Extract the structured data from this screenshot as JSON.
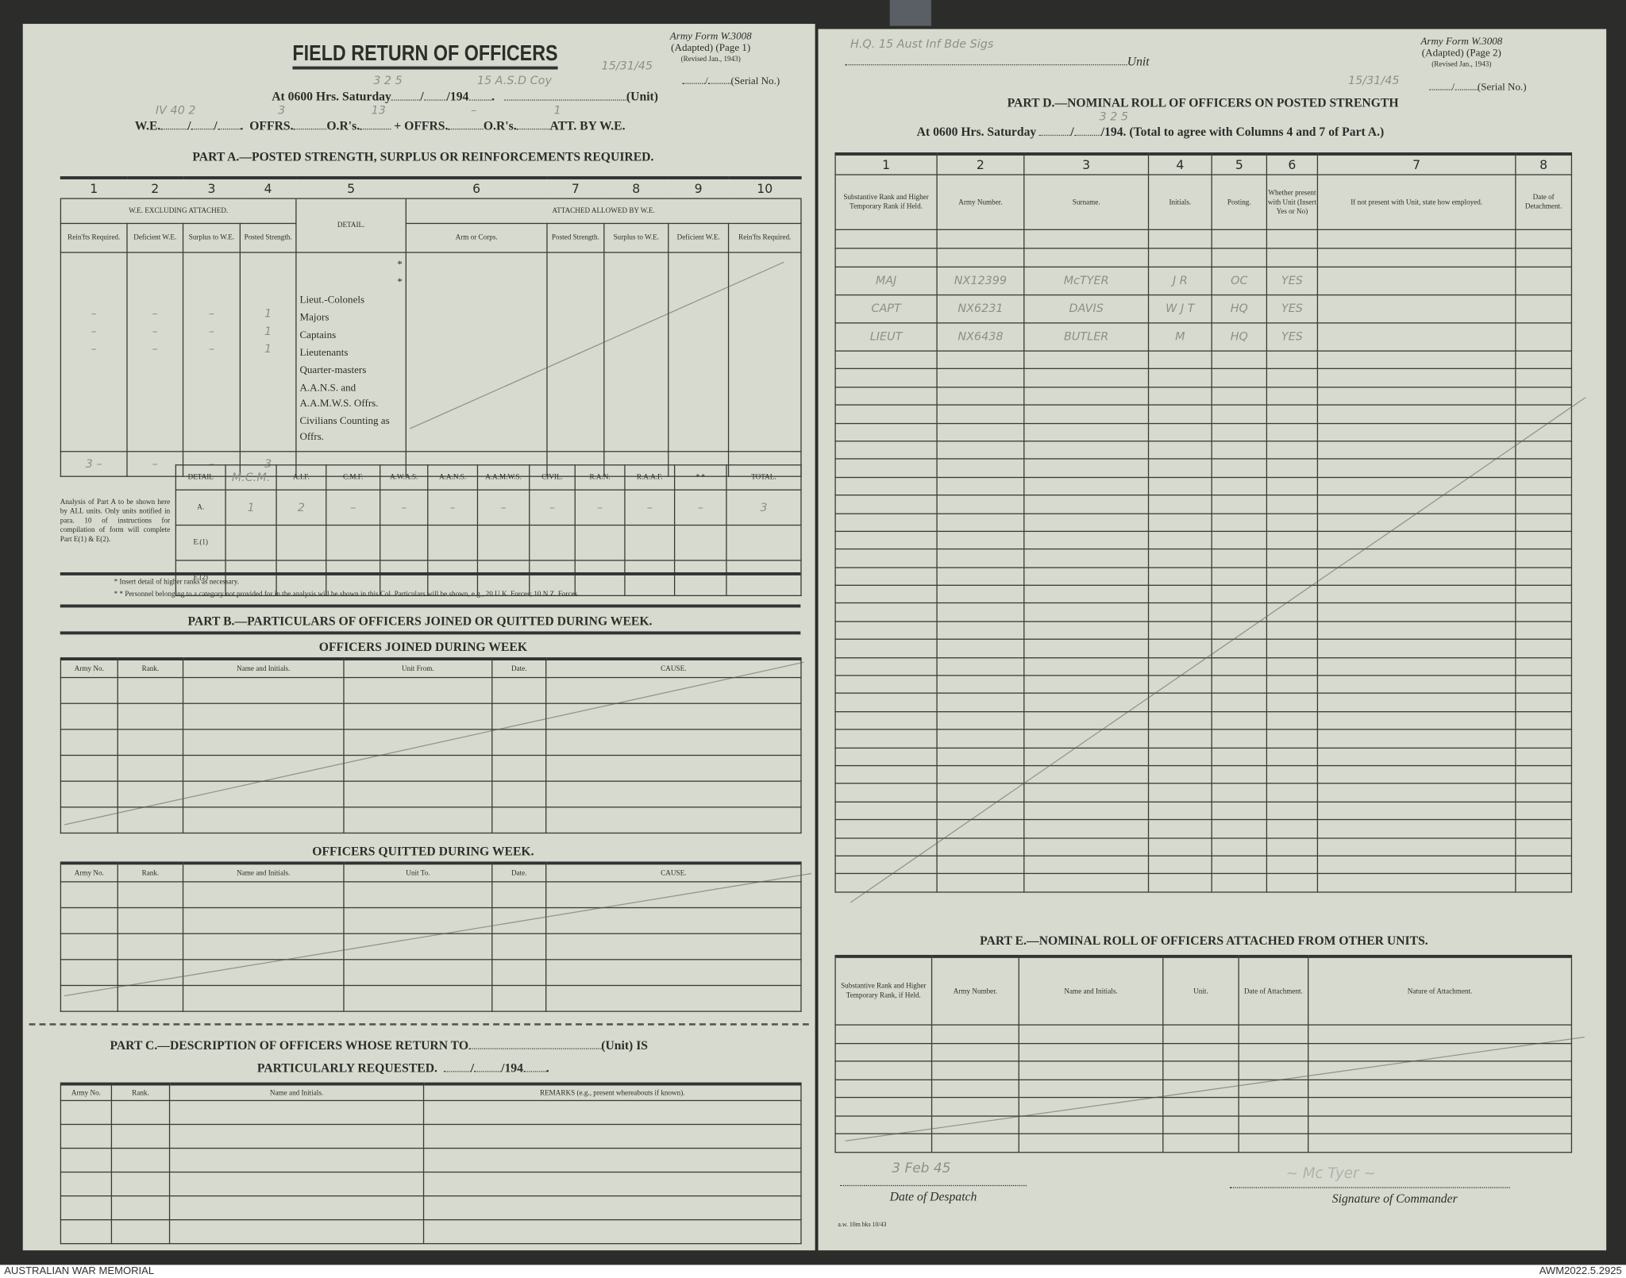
{
  "left_page": {
    "title": "FIELD RETURN OF OFFICERS",
    "form_id": {
      "line1": "Army Form W.3008",
      "line2": "(Adapted) (Page 1)",
      "line3": "(Revised Jan., 1943)",
      "serial_label": "(Serial No.)",
      "serial_hand": "15/31/45"
    },
    "at_line": {
      "prefix": "At 0600 Hrs. Saturday",
      "year": "/194",
      "unit_label": "(Unit)",
      "date_hand": "3   2   5",
      "unit_hand": "15 A.S.D Coy"
    },
    "we_line": {
      "we": "W.E.",
      "offrs1": "OFFRS.",
      "ors1": "O.R's.",
      "plus": "+",
      "offrs2": "OFFRS.",
      "ors2": "O.R's.",
      "att": "ATT. BY W.E.",
      "we_hand": "IV  40  2",
      "offrs1_hand": "3",
      "ors1_hand": "13",
      "offrs2_hand": "–",
      "ors2_hand": "1"
    },
    "part_a": {
      "heading": "PART A.—POSTED STRENGTH, SURPLUS OR REINFORCEMENTS REQUIRED.",
      "col_numbers": [
        "1",
        "2",
        "3",
        "4",
        "5",
        "6",
        "7",
        "8",
        "9",
        "10"
      ],
      "group_we": "W.E. EXCLUDING ATTACHED.",
      "detail": "DETAIL.",
      "group_att": "ATTACHED ALLOWED BY W.E.",
      "sub_headers": [
        "Rein'fts Required.",
        "Deficient W.E.",
        "Surplus to W.E.",
        "Posted Strength.",
        "Arm or Corps.",
        "Posted Strength.",
        "Surplus to W.E.",
        "Deficient W.E.",
        "Rein'fts Required."
      ],
      "ranks": [
        "*",
        "*",
        "Lieut.-Colonels",
        "Majors",
        "Captains",
        "Lieutenants",
        "Quarter-masters",
        "A.A.N.S. and A.A.M.W.S. Offrs.",
        "Civilians Counting as Offrs."
      ],
      "hand_entries": {
        "col1": [
          "–",
          "–",
          "–"
        ],
        "col2": [
          "–",
          "–",
          "–"
        ],
        "col3": [
          "–",
          "–",
          "–"
        ],
        "col4": [
          "1",
          "1",
          "1"
        ]
      },
      "totals_hand": [
        "3  –",
        "–",
        "–",
        "3"
      ]
    },
    "analysis": {
      "note": "Analysis of Part A to be shown here by ALL units. Only units notified in para. 10 of instructions for compilation of form will complete Part E(1) & E(2).",
      "headers": [
        "DETAIL",
        "M.C.M.",
        "A.I.F.",
        "C.M.F.",
        "A.W.A.S.",
        "A.A.N.S.",
        "A.A.M.W.S.",
        "CIVIL.",
        "R.A.N.",
        "R.A.A.F.",
        "* *",
        "TOTAL."
      ],
      "rows": [
        {
          "label": "A.",
          "values": [
            "1",
            "2",
            "–",
            "–",
            "–",
            "–",
            "–",
            "–",
            "–",
            "–",
            "3"
          ]
        },
        {
          "label": "E.(1)",
          "values": [
            "",
            "",
            "",
            "",
            "",
            "",
            "",
            "",
            "",
            "",
            ""
          ]
        },
        {
          "label": "E.(2)",
          "values": [
            "",
            "",
            "",
            "",
            "",
            "",
            "",
            "",
            "",
            "",
            ""
          ]
        }
      ],
      "footnote1": "* Insert detail of higher ranks as necessary.",
      "footnote2": "* * Personnel belonging to a category not provided for in the analysis will be shown in this Col.  Particulars will be shown, e.g., 20 U.K. Forces; 10 N.Z. Forces."
    },
    "part_b": {
      "heading": "PART B.—PARTICULARS OF OFFICERS JOINED OR QUITTED DURING WEEK.",
      "joined_title": "OFFICERS JOINED DURING WEEK",
      "joined_headers": [
        "Army No.",
        "Rank.",
        "Name and Initials.",
        "Unit From.",
        "Date.",
        "CAUSE."
      ],
      "quitted_title": "OFFICERS QUITTED DURING WEEK.",
      "quitted_headers": [
        "Army No.",
        "Rank.",
        "Name and Initials.",
        "Unit To.",
        "Date.",
        "CAUSE."
      ]
    },
    "part_c": {
      "heading1": "PART C.—DESCRIPTION OF OFFICERS WHOSE RETURN TO",
      "unit_is": "(Unit) IS",
      "heading2": "PARTICULARLY REQUESTED.",
      "year": "/194",
      "headers": [
        "Army No.",
        "Rank.",
        "Name and Initials.",
        "REMARKS (e.g., present whereabouts if known)."
      ]
    }
  },
  "right_page": {
    "unit_label": "Unit",
    "unit_hand": "H.Q. 15 Aust Inf Bde Sigs",
    "form_id": {
      "line1": "Army Form W.3008",
      "line2": "(Adapted) (Page 2)",
      "line3": "(Revised Jan., 1943)",
      "serial_label": "(Serial No.)",
      "serial_hand": "15/31/45"
    },
    "part_d": {
      "heading": "PART D.—NOMINAL ROLL OF OFFICERS ON POSTED STRENGTH",
      "at_prefix": "At 0600 Hrs. Saturday",
      "at_suffix": "/194.  (Total to agree with Columns 4 and 7 of Part A.)",
      "date_hand": "3   2   5",
      "col_numbers": [
        "1",
        "2",
        "3",
        "4",
        "5",
        "6",
        "7",
        "8"
      ],
      "headers": [
        "Substantive Rank and Higher Temporary Rank if Held.",
        "Army Number.",
        "Surname.",
        "Initials.",
        "Posting.",
        "Whether present with Unit (Insert Yes or No)",
        "If not present with Unit, state how employed.",
        "Date of Detachment."
      ],
      "entries": [
        [
          "MAJ",
          "NX12399",
          "McTYER",
          "J R",
          "OC",
          "YES",
          "",
          ""
        ],
        [
          "CAPT",
          "NX6231",
          "DAVIS",
          "W J T",
          "HQ",
          "YES",
          "",
          ""
        ],
        [
          "LIEUT",
          "NX6438",
          "BUTLER",
          "M",
          "HQ",
          "YES",
          "",
          ""
        ]
      ]
    },
    "part_e": {
      "heading": "PART E.—NOMINAL ROLL OF OFFICERS ATTACHED FROM OTHER UNITS.",
      "headers": [
        "Substantive Rank and Higher Temporary Rank, if Held.",
        "Army Number.",
        "Name and Initials.",
        "Unit.",
        "Date of Attachment.",
        "Nature of Attachment."
      ]
    },
    "date_of_despatch_label": "Date of Despatch",
    "date_of_despatch_hand": "3 Feb 45",
    "signature_label": "Signature of Commander",
    "print_code": "a.w. 10m bks 10/43"
  },
  "footer": {
    "left": "AUSTRALIAN WAR MEMORIAL",
    "right": "AWM2022.5.2925"
  }
}
